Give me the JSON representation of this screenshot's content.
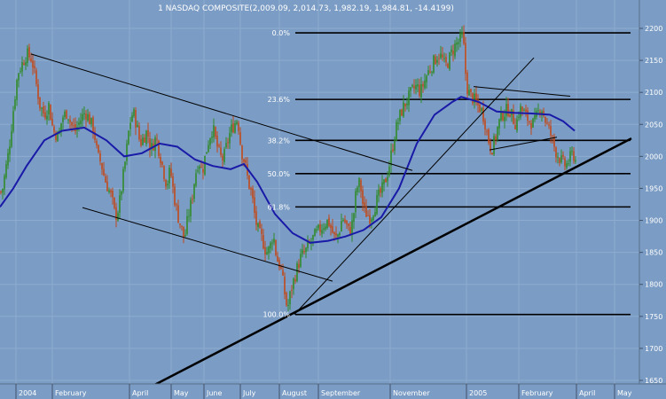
{
  "chart_data": {
    "type": "candlestick",
    "title": "1 NASDAQ COMPOSITE(2,009.09, 2,014.73, 1,982.19, 1,984.81, -14.4199)",
    "y_ticks": [
      "2200",
      "2150",
      "2100",
      "2050",
      "2000",
      "1950",
      "1900",
      "1850",
      "1800",
      "1750",
      "1700",
      "1650"
    ],
    "ylim": [
      1640,
      2222
    ],
    "x_ticks": [
      "2004",
      "February",
      "April",
      "May",
      "June",
      "July",
      "August",
      "September",
      "November",
      "2005",
      "February",
      "April",
      "May"
    ],
    "fib_levels": [
      {
        "label": "0.0%",
        "value": 2193
      },
      {
        "label": "23.6%",
        "value": 2089
      },
      {
        "label": "38.2%",
        "value": 2025
      },
      {
        "label": "50.0%",
        "value": 1973
      },
      {
        "label": "61.8%",
        "value": 1921
      },
      {
        "label": "100.0%",
        "value": 1753
      }
    ],
    "price_path": [
      [
        0,
        1945
      ],
      [
        2,
        1942
      ],
      [
        10,
        2010
      ],
      [
        16,
        2085
      ],
      [
        20,
        2130
      ],
      [
        25,
        2145
      ],
      [
        30,
        2160
      ],
      [
        36,
        2152
      ],
      [
        40,
        2120
      ],
      [
        45,
        2080
      ],
      [
        50,
        2065
      ],
      [
        55,
        2080
      ],
      [
        60,
        2040
      ],
      [
        66,
        2030
      ],
      [
        70,
        2060
      ],
      [
        76,
        2070
      ],
      [
        80,
        2050
      ],
      [
        85,
        2040
      ],
      [
        90,
        2055
      ],
      [
        96,
        2070
      ],
      [
        100,
        2060
      ],
      [
        106,
        2040
      ],
      [
        110,
        2000
      ],
      [
        114,
        1990
      ],
      [
        118,
        1965
      ],
      [
        122,
        1950
      ],
      [
        126,
        1935
      ],
      [
        130,
        1905
      ],
      [
        134,
        1920
      ],
      [
        138,
        1960
      ],
      [
        142,
        2000
      ],
      [
        146,
        2050
      ],
      [
        150,
        2070
      ],
      [
        154,
        2050
      ],
      [
        158,
        2020
      ],
      [
        162,
        2030
      ],
      [
        166,
        2040
      ],
      [
        170,
        2010
      ],
      [
        176,
        2030
      ],
      [
        180,
        2005
      ],
      [
        184,
        1980
      ],
      [
        188,
        1955
      ],
      [
        192,
        1980
      ],
      [
        196,
        1940
      ],
      [
        200,
        1910
      ],
      [
        204,
        1890
      ],
      [
        208,
        1870
      ],
      [
        212,
        1905
      ],
      [
        216,
        1930
      ],
      [
        220,
        1970
      ],
      [
        224,
        1995
      ],
      [
        228,
        1975
      ],
      [
        232,
        2005
      ],
      [
        236,
        2030
      ],
      [
        240,
        2045
      ],
      [
        244,
        2020
      ],
      [
        248,
        2000
      ],
      [
        252,
        1995
      ],
      [
        256,
        2020
      ],
      [
        260,
        2040
      ],
      [
        264,
        2050
      ],
      [
        268,
        2060
      ],
      [
        272,
        2010
      ],
      [
        276,
        1990
      ],
      [
        280,
        1960
      ],
      [
        284,
        1940
      ],
      [
        288,
        1900
      ],
      [
        292,
        1880
      ],
      [
        296,
        1870
      ],
      [
        300,
        1850
      ],
      [
        304,
        1855
      ],
      [
        308,
        1880
      ],
      [
        312,
        1840
      ],
      [
        316,
        1830
      ],
      [
        320,
        1795
      ],
      [
        324,
        1760
      ],
      [
        328,
        1790
      ],
      [
        332,
        1810
      ],
      [
        336,
        1830
      ],
      [
        340,
        1845
      ],
      [
        344,
        1850
      ],
      [
        348,
        1860
      ],
      [
        352,
        1870
      ],
      [
        356,
        1878
      ],
      [
        360,
        1885
      ],
      [
        366,
        1895
      ],
      [
        370,
        1900
      ],
      [
        374,
        1885
      ],
      [
        378,
        1870
      ],
      [
        382,
        1880
      ],
      [
        386,
        1905
      ],
      [
        390,
        1895
      ],
      [
        394,
        1880
      ],
      [
        398,
        1900
      ],
      [
        402,
        1950
      ],
      [
        406,
        1960
      ],
      [
        410,
        1915
      ],
      [
        414,
        1910
      ],
      [
        418,
        1905
      ],
      [
        422,
        1920
      ],
      [
        426,
        1935
      ],
      [
        430,
        1945
      ],
      [
        434,
        1960
      ],
      [
        438,
        1980
      ],
      [
        442,
        2010
      ],
      [
        446,
        2040
      ],
      [
        450,
        2060
      ],
      [
        454,
        2075
      ],
      [
        458,
        2085
      ],
      [
        462,
        2095
      ],
      [
        466,
        2105
      ],
      [
        470,
        2110
      ],
      [
        474,
        2100
      ],
      [
        478,
        2115
      ],
      [
        482,
        2130
      ],
      [
        486,
        2140
      ],
      [
        490,
        2150
      ],
      [
        494,
        2160
      ],
      [
        498,
        2155
      ],
      [
        502,
        2140
      ],
      [
        506,
        2150
      ],
      [
        510,
        2165
      ],
      [
        514,
        2175
      ],
      [
        518,
        2180
      ],
      [
        522,
        2190
      ],
      [
        526,
        2110
      ],
      [
        530,
        2095
      ],
      [
        534,
        2090
      ],
      [
        538,
        2080
      ],
      [
        542,
        2075
      ],
      [
        546,
        2060
      ],
      [
        550,
        2030
      ],
      [
        554,
        2010
      ],
      [
        558,
        2025
      ],
      [
        562,
        2050
      ],
      [
        566,
        2065
      ],
      [
        570,
        2070
      ],
      [
        574,
        2075
      ],
      [
        578,
        2060
      ],
      [
        582,
        2050
      ],
      [
        586,
        2075
      ],
      [
        590,
        2070
      ],
      [
        594,
        2060
      ],
      [
        598,
        2055
      ],
      [
        602,
        2050
      ],
      [
        606,
        2065
      ],
      [
        610,
        2080
      ],
      [
        614,
        2060
      ],
      [
        618,
        2045
      ],
      [
        622,
        2030
      ],
      [
        626,
        2010
      ],
      [
        630,
        2000
      ],
      [
        634,
        1990
      ],
      [
        638,
        1985
      ],
      [
        642,
        1995
      ],
      [
        646,
        2005
      ],
      [
        650,
        1990
      ]
    ],
    "moving_average": [
      [
        0,
        1921
      ],
      [
        15,
        1950
      ],
      [
        30,
        1985
      ],
      [
        50,
        2025
      ],
      [
        70,
        2040
      ],
      [
        95,
        2045
      ],
      [
        120,
        2025
      ],
      [
        140,
        2000
      ],
      [
        160,
        2005
      ],
      [
        180,
        2020
      ],
      [
        200,
        2015
      ],
      [
        220,
        1995
      ],
      [
        240,
        1985
      ],
      [
        260,
        1980
      ],
      [
        275,
        1988
      ],
      [
        290,
        1960
      ],
      [
        310,
        1910
      ],
      [
        330,
        1880
      ],
      [
        350,
        1865
      ],
      [
        370,
        1868
      ],
      [
        390,
        1875
      ],
      [
        410,
        1885
      ],
      [
        430,
        1905
      ],
      [
        450,
        1950
      ],
      [
        470,
        2020
      ],
      [
        490,
        2065
      ],
      [
        510,
        2085
      ],
      [
        520,
        2093
      ],
      [
        540,
        2085
      ],
      [
        560,
        2070
      ],
      [
        580,
        2068
      ],
      [
        600,
        2067
      ],
      [
        620,
        2065
      ],
      [
        635,
        2055
      ],
      [
        648,
        2040
      ]
    ],
    "trendlines": [
      {
        "points": [
          [
            35,
            2160
          ],
          [
            465,
            1978
          ]
        ],
        "width": 1
      },
      {
        "points": [
          [
            93,
            1920
          ],
          [
            375,
            1805
          ]
        ],
        "width": 1
      },
      {
        "points": [
          [
            332,
            1753
          ],
          [
            602,
            2154
          ]
        ],
        "width": 1
      },
      {
        "points": [
          [
            170,
            1640
          ],
          [
            712,
            2028
          ]
        ],
        "width": 2.5
      },
      {
        "points": [
          [
            534,
            2109
          ],
          [
            643,
            2094
          ]
        ],
        "width": 1
      },
      {
        "points": [
          [
            552,
            2010
          ],
          [
            628,
            2030
          ]
        ],
        "width": 1
      }
    ],
    "grid": true,
    "legend": "none"
  }
}
